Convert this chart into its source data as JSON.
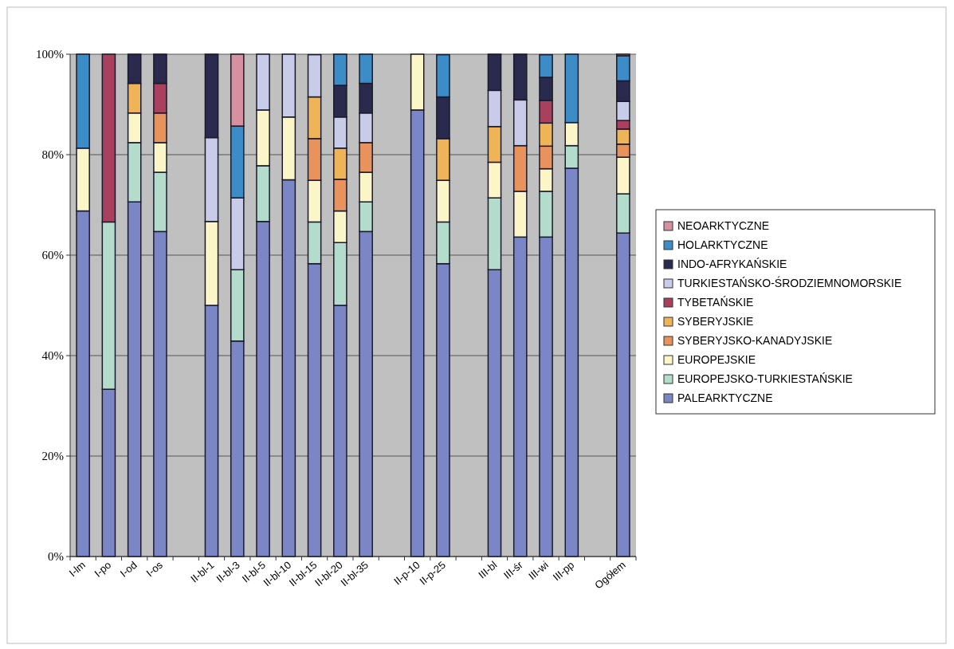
{
  "chart_data": {
    "type": "bar",
    "stacked": true,
    "grid": "y",
    "legend": "right",
    "categories": [
      "I-lm",
      "I-po",
      "I-od",
      "I-os",
      null,
      "II-bl-1",
      "II-bl-3",
      "II-bl-5",
      "II-bl-10",
      "II-bl-15",
      "II-bl-20",
      "II-bl-35",
      null,
      "II-p-10",
      "II-p-25",
      null,
      "III-bl",
      "III-śr",
      "III-wi",
      "III-pp",
      null,
      "Ogółem"
    ],
    "ylim": [
      0,
      100
    ],
    "yticks": [
      {
        "value": 0,
        "label": "0%"
      },
      {
        "value": 20,
        "label": "20%"
      },
      {
        "value": 40,
        "label": "40%"
      },
      {
        "value": 60,
        "label": "60%"
      },
      {
        "value": 80,
        "label": "80%"
      },
      {
        "value": 100,
        "label": "100%"
      }
    ],
    "series": [
      {
        "name": "PALEARKTYCZNE",
        "color": "#7b86c6",
        "values": [
          68.8,
          33.3,
          70.6,
          64.7,
          null,
          50,
          42.9,
          66.7,
          75,
          58.3,
          50,
          64.7,
          null,
          88.9,
          58.3,
          null,
          57.1,
          63.6,
          63.6,
          77.3,
          null,
          64.4
        ]
      },
      {
        "name": "EUROPEJSKO-TURKIESTAŃSKIE",
        "color": "#b4dccc",
        "values": [
          null,
          33.3,
          11.8,
          11.8,
          null,
          null,
          14.2,
          11.1,
          null,
          8.3,
          12.5,
          5.9,
          null,
          null,
          8.3,
          null,
          14.3,
          null,
          9.1,
          4.5,
          null,
          7.8
        ]
      },
      {
        "name": "EUROPEJSKIE",
        "color": "#fbf5c8",
        "values": [
          12.5,
          null,
          5.9,
          5.9,
          null,
          16.7,
          null,
          11.1,
          12.5,
          8.3,
          6.3,
          5.9,
          null,
          11.1,
          8.3,
          null,
          7.1,
          9.1,
          4.5,
          4.6,
          null,
          7.3
        ]
      },
      {
        "name": "SYBERYJSKO-KANADYJSKIE",
        "color": "#e8935e",
        "values": [
          null,
          null,
          null,
          5.9,
          null,
          null,
          null,
          null,
          null,
          8.3,
          6.3,
          5.9,
          null,
          null,
          null,
          null,
          null,
          9.1,
          4.5,
          null,
          null,
          2.6
        ]
      },
      {
        "name": "SYBERYJSKIE",
        "color": "#f0b458",
        "values": [
          null,
          null,
          5.9,
          null,
          null,
          null,
          null,
          null,
          null,
          8.3,
          6.2,
          null,
          null,
          null,
          8.3,
          null,
          7.1,
          null,
          4.6,
          null,
          null,
          3.0
        ]
      },
      {
        "name": "TYBETAŃSKIE",
        "color": "#a8405e",
        "values": [
          null,
          33.4,
          null,
          5.9,
          null,
          null,
          null,
          null,
          null,
          null,
          null,
          null,
          null,
          null,
          null,
          null,
          null,
          null,
          4.5,
          null,
          null,
          1.7
        ]
      },
      {
        "name": "TURKIESTAŃSKO-ŚRODZIEMNOMORSKIE",
        "color": "#c8cce8",
        "values": [
          null,
          null,
          null,
          null,
          null,
          16.7,
          14.3,
          11.1,
          12.5,
          8.4,
          6.2,
          5.9,
          null,
          null,
          null,
          null,
          7.2,
          9.1,
          null,
          null,
          null,
          3.8
        ]
      },
      {
        "name": "INDO-AFRYKAŃSKIE",
        "color": "#2a2a4e",
        "values": [
          null,
          null,
          5.8,
          5.8,
          null,
          16.6,
          null,
          null,
          null,
          null,
          6.3,
          5.9,
          null,
          null,
          8.3,
          null,
          7.2,
          9.1,
          4.6,
          null,
          null,
          4.1
        ]
      },
      {
        "name": "HOLARKTYCZNE",
        "color": "#3c8cc8",
        "values": [
          18.7,
          null,
          null,
          null,
          null,
          null,
          14.3,
          null,
          null,
          null,
          6.2,
          5.8,
          null,
          null,
          8.4,
          null,
          null,
          null,
          4.5,
          13.6,
          null,
          5.0
        ]
      },
      {
        "name": "NEOARKTYCZNE",
        "color": "#d690a0",
        "values": [
          null,
          null,
          null,
          null,
          null,
          null,
          14.3,
          null,
          null,
          null,
          null,
          null,
          null,
          null,
          null,
          null,
          null,
          null,
          null,
          null,
          null,
          0.3
        ]
      }
    ]
  }
}
